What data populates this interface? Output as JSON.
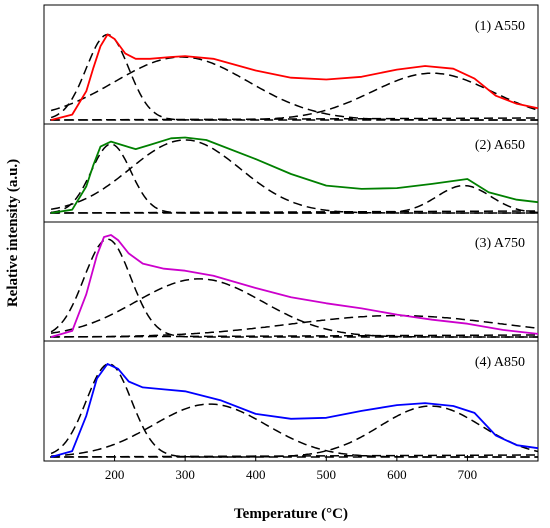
{
  "chart_data": {
    "type": "line",
    "xlabel": "Temperature (°C)",
    "ylabel": "Relative intensity (a.u.)",
    "xlim": [
      100,
      800
    ],
    "x_ticks": [
      200,
      300,
      400,
      500,
      600,
      700
    ],
    "grid": false,
    "panels": [
      {
        "label": "(1) A550",
        "color": "#ff0000",
        "measured": [
          [
            110,
            0.0
          ],
          [
            140,
            0.06
          ],
          [
            160,
            0.32
          ],
          [
            170,
            0.58
          ],
          [
            180,
            0.82
          ],
          [
            190,
            0.95
          ],
          [
            200,
            0.9
          ],
          [
            215,
            0.74
          ],
          [
            230,
            0.68
          ],
          [
            250,
            0.68
          ],
          [
            280,
            0.7
          ],
          [
            300,
            0.71
          ],
          [
            340,
            0.68
          ],
          [
            400,
            0.55
          ],
          [
            450,
            0.47
          ],
          [
            500,
            0.45
          ],
          [
            550,
            0.48
          ],
          [
            600,
            0.56
          ],
          [
            640,
            0.6
          ],
          [
            680,
            0.57
          ],
          [
            710,
            0.46
          ],
          [
            740,
            0.27
          ],
          [
            770,
            0.18
          ],
          [
            800,
            0.13
          ]
        ],
        "components": [
          {
            "center": 190,
            "height": 0.95,
            "width": 30
          },
          {
            "center": 295,
            "height": 0.7,
            "width": 95
          },
          {
            "center": 650,
            "height": 0.52,
            "width": 85
          }
        ]
      },
      {
        "label": "(2) A650",
        "color": "#008000",
        "measured": [
          [
            110,
            0.0
          ],
          [
            140,
            0.04
          ],
          [
            160,
            0.32
          ],
          [
            170,
            0.58
          ],
          [
            180,
            0.8
          ],
          [
            195,
            0.86
          ],
          [
            210,
            0.82
          ],
          [
            230,
            0.77
          ],
          [
            250,
            0.82
          ],
          [
            280,
            0.9
          ],
          [
            300,
            0.91
          ],
          [
            330,
            0.88
          ],
          [
            400,
            0.65
          ],
          [
            450,
            0.47
          ],
          [
            500,
            0.33
          ],
          [
            550,
            0.29
          ],
          [
            600,
            0.3
          ],
          [
            650,
            0.35
          ],
          [
            700,
            0.41
          ],
          [
            730,
            0.25
          ],
          [
            770,
            0.16
          ],
          [
            800,
            0.13
          ]
        ],
        "components": [
          {
            "center": 195,
            "height": 0.83,
            "width": 28
          },
          {
            "center": 300,
            "height": 0.88,
            "width": 78
          },
          {
            "center": 695,
            "height": 0.33,
            "width": 38
          }
        ]
      },
      {
        "label": "(3) A750",
        "color": "#cc00cc",
        "measured": [
          [
            110,
            0.0
          ],
          [
            140,
            0.06
          ],
          [
            160,
            0.42
          ],
          [
            175,
            0.8
          ],
          [
            185,
            0.98
          ],
          [
            195,
            1.0
          ],
          [
            205,
            0.95
          ],
          [
            220,
            0.82
          ],
          [
            240,
            0.72
          ],
          [
            270,
            0.67
          ],
          [
            300,
            0.65
          ],
          [
            340,
            0.6
          ],
          [
            400,
            0.48
          ],
          [
            450,
            0.39
          ],
          [
            500,
            0.33
          ],
          [
            550,
            0.28
          ],
          [
            600,
            0.22
          ],
          [
            650,
            0.17
          ],
          [
            700,
            0.13
          ],
          [
            750,
            0.07
          ],
          [
            800,
            0.03
          ]
        ],
        "components": [
          {
            "center": 190,
            "height": 0.96,
            "width": 33
          },
          {
            "center": 320,
            "height": 0.57,
            "width": 90
          },
          {
            "center": 600,
            "height": 0.21,
            "width": 150
          }
        ]
      },
      {
        "label": "(4) A850",
        "color": "#0000ff",
        "measured": [
          [
            110,
            0.0
          ],
          [
            140,
            0.06
          ],
          [
            160,
            0.42
          ],
          [
            175,
            0.8
          ],
          [
            190,
            0.95
          ],
          [
            205,
            0.9
          ],
          [
            220,
            0.77
          ],
          [
            240,
            0.71
          ],
          [
            270,
            0.69
          ],
          [
            300,
            0.67
          ],
          [
            350,
            0.58
          ],
          [
            400,
            0.44
          ],
          [
            450,
            0.39
          ],
          [
            500,
            0.4
          ],
          [
            550,
            0.47
          ],
          [
            600,
            0.53
          ],
          [
            640,
            0.55
          ],
          [
            680,
            0.52
          ],
          [
            710,
            0.45
          ],
          [
            740,
            0.22
          ],
          [
            770,
            0.12
          ],
          [
            800,
            0.09
          ]
        ],
        "components": [
          {
            "center": 192,
            "height": 0.95,
            "width": 32
          },
          {
            "center": 335,
            "height": 0.54,
            "width": 80
          },
          {
            "center": 648,
            "height": 0.52,
            "width": 72
          }
        ]
      }
    ]
  }
}
